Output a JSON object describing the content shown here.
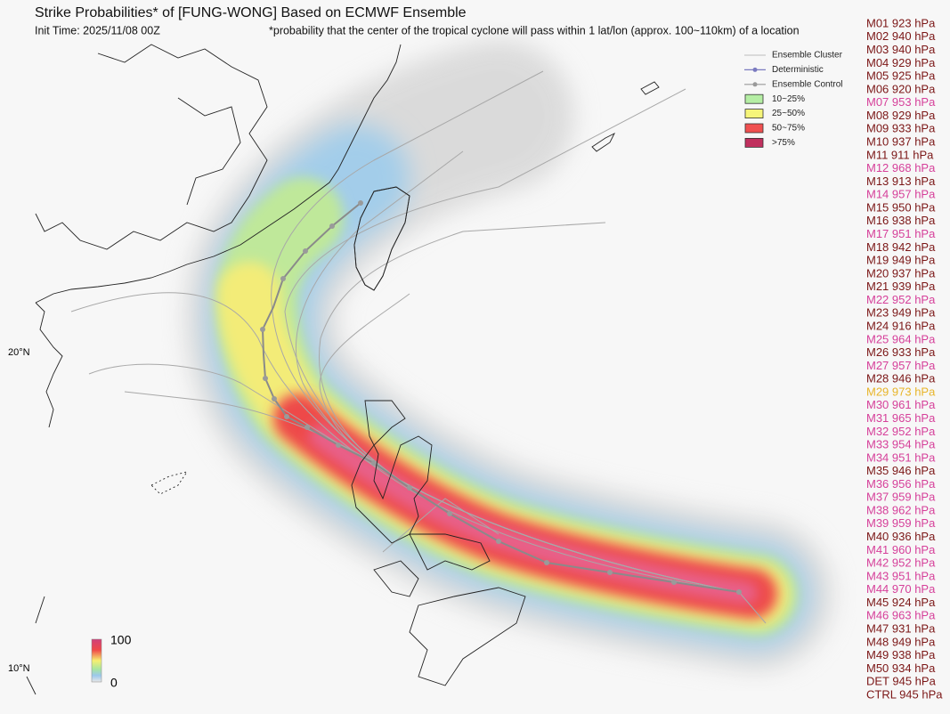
{
  "header": {
    "title": "Strike Probabilities* of [FUNG-WONG] Based on ECMWF Ensemble",
    "init_time": "Init Time: 2025/11/08 00Z",
    "footnote": "*probability that the center of the tropical cyclone will pass within 1 lat/lon (approx. 100~110km) of a location"
  },
  "legend": [
    {
      "label": "Ensemble Cluster",
      "kind": "line",
      "color": "#c8c8c8"
    },
    {
      "label": "Deterministic",
      "kind": "line-dot",
      "color": "#7b7bc0"
    },
    {
      "label": "Ensemble Control",
      "kind": "line-dot",
      "color": "#9a9a9a"
    },
    {
      "label": "10~25%",
      "kind": "box",
      "color": "#b5eea4"
    },
    {
      "label": "25~50%",
      "kind": "box",
      "color": "#f6f57a"
    },
    {
      "label": "50~75%",
      "kind": "box",
      "color": "#f05050"
    },
    {
      "label": ">75%",
      "kind": "box",
      "color": "#c0305e"
    }
  ],
  "colorbar": {
    "max_label": "100",
    "min_label": "0"
  },
  "lat_labels": [
    "20°N",
    "10°N"
  ],
  "members": [
    {
      "label": "M01 923 hPa",
      "color": "#7b1616"
    },
    {
      "label": "M02 940 hPa",
      "color": "#7b1616"
    },
    {
      "label": "M03 940 hPa",
      "color": "#7b1616"
    },
    {
      "label": "M04 929 hPa",
      "color": "#7b1616"
    },
    {
      "label": "M05 925 hPa",
      "color": "#7b1616"
    },
    {
      "label": "M06 920 hPa",
      "color": "#7b1616"
    },
    {
      "label": "M07 953 hPa",
      "color": "#d6409a"
    },
    {
      "label": "M08 929 hPa",
      "color": "#7b1616"
    },
    {
      "label": "M09 933 hPa",
      "color": "#7b1616"
    },
    {
      "label": "M10 937 hPa",
      "color": "#7b1616"
    },
    {
      "label": "M11 911 hPa",
      "color": "#7b1616"
    },
    {
      "label": "M12 968 hPa",
      "color": "#d6409a"
    },
    {
      "label": "M13 913 hPa",
      "color": "#7b1616"
    },
    {
      "label": "M14 957 hPa",
      "color": "#d6409a"
    },
    {
      "label": "M15 950 hPa",
      "color": "#7b1616"
    },
    {
      "label": "M16 938 hPa",
      "color": "#7b1616"
    },
    {
      "label": "M17 951 hPa",
      "color": "#d6409a"
    },
    {
      "label": "M18 942 hPa",
      "color": "#7b1616"
    },
    {
      "label": "M19 949 hPa",
      "color": "#7b1616"
    },
    {
      "label": "M20 937 hPa",
      "color": "#7b1616"
    },
    {
      "label": "M21 939 hPa",
      "color": "#7b1616"
    },
    {
      "label": "M22 952 hPa",
      "color": "#d6409a"
    },
    {
      "label": "M23 949 hPa",
      "color": "#7b1616"
    },
    {
      "label": "M24 916 hPa",
      "color": "#7b1616"
    },
    {
      "label": "M25 964 hPa",
      "color": "#d6409a"
    },
    {
      "label": "M26 933 hPa",
      "color": "#7b1616"
    },
    {
      "label": "M27 957 hPa",
      "color": "#d6409a"
    },
    {
      "label": "M28 946 hPa",
      "color": "#7b1616"
    },
    {
      "label": "M29 973 hPa",
      "color": "#e8b52a"
    },
    {
      "label": "M30 961 hPa",
      "color": "#d6409a"
    },
    {
      "label": "M31 965 hPa",
      "color": "#d6409a"
    },
    {
      "label": "M32 952 hPa",
      "color": "#d6409a"
    },
    {
      "label": "M33 954 hPa",
      "color": "#d6409a"
    },
    {
      "label": "M34 951 hPa",
      "color": "#d6409a"
    },
    {
      "label": "M35 946 hPa",
      "color": "#7b1616"
    },
    {
      "label": "M36 956 hPa",
      "color": "#d6409a"
    },
    {
      "label": "M37 959 hPa",
      "color": "#d6409a"
    },
    {
      "label": "M38 962 hPa",
      "color": "#d6409a"
    },
    {
      "label": "M39 959 hPa",
      "color": "#d6409a"
    },
    {
      "label": "M40 936 hPa",
      "color": "#7b1616"
    },
    {
      "label": "M41 960 hPa",
      "color": "#d6409a"
    },
    {
      "label": "M42 952 hPa",
      "color": "#d6409a"
    },
    {
      "label": "M43 951 hPa",
      "color": "#d6409a"
    },
    {
      "label": "M44 970 hPa",
      "color": "#d6409a"
    },
    {
      "label": "M45 924 hPa",
      "color": "#7b1616"
    },
    {
      "label": "M46 963 hPa",
      "color": "#d6409a"
    },
    {
      "label": "M47 931 hPa",
      "color": "#7b1616"
    },
    {
      "label": "M48 949 hPa",
      "color": "#7b1616"
    },
    {
      "label": "M49 938 hPa",
      "color": "#7b1616"
    },
    {
      "label": "M50 934 hPa",
      "color": "#7b1616"
    },
    {
      "label": "DET 945 hPa",
      "color": "#7b1616"
    },
    {
      "label": "CTRL 945 hPa",
      "color": "#7b1616"
    }
  ]
}
